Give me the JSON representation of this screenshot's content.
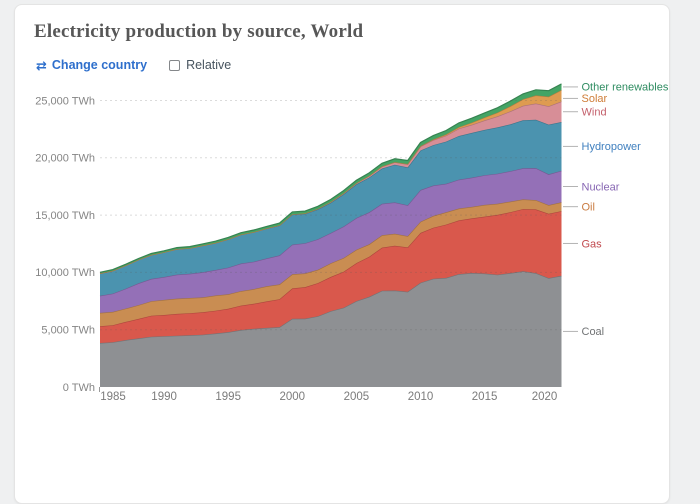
{
  "page": {
    "background_color": "#eff0f1",
    "card_color": "#ffffff"
  },
  "header": {
    "title": "Electricity production by source, World"
  },
  "controls": {
    "change_country": {
      "label": "Change country",
      "icon": "swap-arrows-icon",
      "color": "#2e6fcc"
    },
    "relative": {
      "label": "Relative",
      "checked": false
    }
  },
  "chart_data": {
    "type": "area",
    "stacked": true,
    "title": "Electricity production by source, World",
    "unit": "TWh",
    "grid": "dashed-horizontal",
    "legend_position": "right",
    "xlim": [
      1985,
      2021
    ],
    "ylim": [
      0,
      25000
    ],
    "x_ticks": [
      1985,
      1990,
      1995,
      2000,
      2005,
      2010,
      2015,
      2020
    ],
    "y_ticks": [
      {
        "value": 0,
        "label": "0 TWh"
      },
      {
        "value": 5000,
        "label": "5,000 TWh"
      },
      {
        "value": 10000,
        "label": "10,000 TWh"
      },
      {
        "value": 15000,
        "label": "15,000 TWh"
      },
      {
        "value": 20000,
        "label": "20,000 TWh"
      },
      {
        "value": 25000,
        "label": "25,000 TWh"
      }
    ],
    "x": [
      1985,
      1986,
      1987,
      1988,
      1989,
      1990,
      1991,
      1992,
      1993,
      1994,
      1995,
      1996,
      1997,
      1998,
      1999,
      2000,
      2001,
      2002,
      2003,
      2004,
      2005,
      2006,
      2007,
      2008,
      2009,
      2010,
      2011,
      2012,
      2013,
      2014,
      2015,
      2016,
      2017,
      2018,
      2019,
      2020,
      2021
    ],
    "series": [
      {
        "name": "Coal",
        "fill": "#8e9093",
        "label_color": "#717375",
        "values": [
          3840,
          3910,
          4090,
          4240,
          4390,
          4430,
          4480,
          4510,
          4560,
          4670,
          4790,
          4970,
          5080,
          5160,
          5230,
          5950,
          5970,
          6180,
          6620,
          6920,
          7500,
          7870,
          8400,
          8420,
          8320,
          9100,
          9450,
          9520,
          9850,
          9950,
          9900,
          9800,
          9940,
          10100,
          9940,
          9500,
          9700
        ]
      },
      {
        "name": "Gas",
        "fill": "#d9584c",
        "label_color": "#c1494e",
        "values": [
          1460,
          1480,
          1590,
          1700,
          1830,
          1850,
          1900,
          1930,
          1960,
          1990,
          2030,
          2130,
          2180,
          2310,
          2430,
          2650,
          2750,
          2890,
          2990,
          3140,
          3310,
          3500,
          3760,
          3900,
          3860,
          4350,
          4450,
          4650,
          4690,
          4760,
          4970,
          5220,
          5310,
          5420,
          5560,
          5610,
          5650
        ]
      },
      {
        "name": "Oil",
        "fill": "#c98d52",
        "label_color": "#c97b41",
        "values": [
          1170,
          1160,
          1160,
          1210,
          1270,
          1320,
          1330,
          1330,
          1300,
          1320,
          1270,
          1270,
          1280,
          1320,
          1290,
          1230,
          1190,
          1160,
          1190,
          1200,
          1170,
          1080,
          1080,
          1050,
          985,
          970,
          1030,
          1070,
          1040,
          1005,
          1020,
          970,
          930,
          850,
          810,
          760,
          770
        ]
      },
      {
        "name": "Nuclear",
        "fill": "#9470b7",
        "label_color": "#8766b3",
        "values": [
          1488,
          1596,
          1737,
          1895,
          1947,
          2001,
          2100,
          2110,
          2190,
          2230,
          2330,
          2410,
          2395,
          2435,
          2530,
          2595,
          2640,
          2665,
          2640,
          2745,
          2770,
          2795,
          2750,
          2740,
          2700,
          2770,
          2655,
          2495,
          2515,
          2555,
          2595,
          2625,
          2655,
          2710,
          2790,
          2690,
          2750
        ]
      },
      {
        "name": "Hydropower",
        "fill": "#4b93af",
        "label_color": "#4080bf",
        "values": [
          1954,
          1996,
          2022,
          2060,
          2090,
          2159,
          2225,
          2230,
          2335,
          2360,
          2470,
          2515,
          2580,
          2595,
          2615,
          2625,
          2560,
          2610,
          2645,
          2810,
          2935,
          3040,
          3080,
          3285,
          3300,
          3450,
          3520,
          3680,
          3810,
          3900,
          3950,
          4040,
          4080,
          4190,
          4220,
          4340,
          4250
        ]
      },
      {
        "name": "Wind",
        "fill": "#d78e97",
        "label_color": "#c4606c",
        "values": [
          0,
          0,
          0,
          1,
          2,
          4,
          4,
          5,
          6,
          7,
          8,
          9,
          12,
          16,
          21,
          31,
          38,
          52,
          63,
          85,
          104,
          133,
          171,
          221,
          276,
          346,
          437,
          526,
          646,
          712,
          831,
          959,
          1134,
          1270,
          1420,
          1591,
          1800
        ]
      },
      {
        "name": "Solar",
        "fill": "#de9b50",
        "label_color": "#cf7d38",
        "values": [
          0,
          0,
          0,
          0,
          0,
          0,
          0,
          0,
          0,
          0,
          0,
          0,
          0,
          0,
          1,
          1,
          1,
          2,
          2,
          3,
          4,
          5,
          7,
          12,
          21,
          32,
          63,
          97,
          132,
          190,
          253,
          328,
          445,
          574,
          704,
          853,
          1000
        ]
      },
      {
        "name": "Other renewables",
        "fill": "#44a465",
        "label_color": "#2e8c61",
        "values": [
          95,
          100,
          105,
          110,
          116,
          122,
          128,
          134,
          140,
          147,
          154,
          161,
          169,
          177,
          185,
          194,
          203,
          213,
          223,
          234,
          246,
          258,
          271,
          285,
          299,
          314,
          330,
          347,
          364,
          382,
          401,
          421,
          442,
          464,
          487,
          511,
          530
        ]
      }
    ]
  }
}
